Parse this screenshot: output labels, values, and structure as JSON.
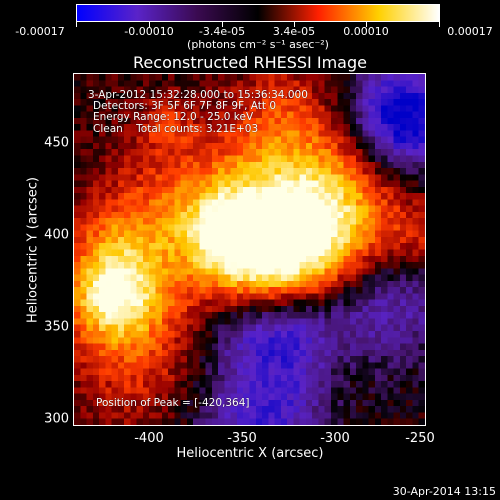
{
  "colorbar": {
    "tick_labels": [
      "-0.00017",
      "-0.00010",
      "-3.4e-05",
      "3.4e-05",
      "0.00010",
      "0.00017"
    ],
    "units": "(photons cm⁻² s⁻¹ asec⁻²)",
    "colors": [
      "#0000ff",
      "#5a23c8",
      "#3a0a50",
      "#000000",
      "#ff2000",
      "#ffd000",
      "#ffffff"
    ]
  },
  "title": "Reconstructed RHESSI Image",
  "annotations": [
    "3-Apr-2012 15:32:28.000 to 15:36:34.000",
    "Detectors: 3F 5F 6F 7F 8F 9F, Att 0",
    "Energy Range: 12.0 - 25.0 keV",
    "Clean    Total counts: 3.21E+03"
  ],
  "peak_label": "Position of Peak = [-420,364]",
  "x_axis": {
    "label": "Heliocentric X (arcsec)",
    "range": [
      -437,
      -248
    ],
    "ticks": [
      "-400",
      "-350",
      "-300",
      "-250"
    ]
  },
  "y_axis": {
    "label": "Heliocentric Y (arcsec)",
    "range": [
      297,
      486
    ],
    "ticks": [
      "300",
      "350",
      "400",
      "450"
    ]
  },
  "footer": "30-Apr-2014 13:15"
}
